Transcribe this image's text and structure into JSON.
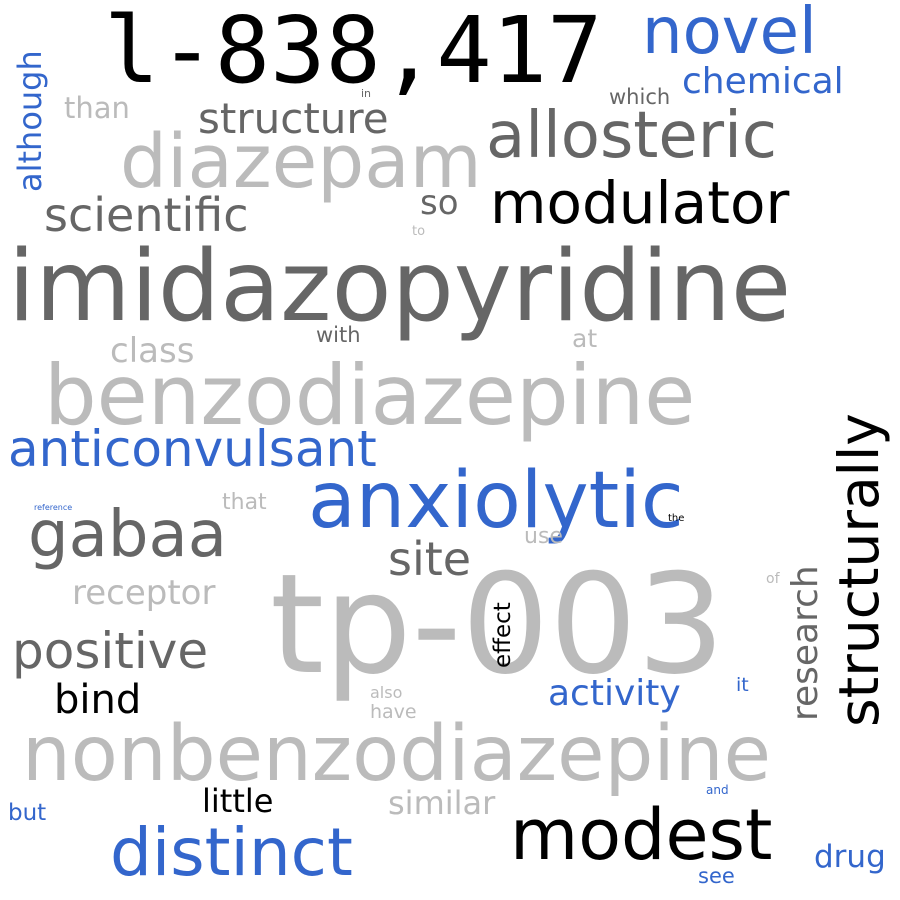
{
  "colors": {
    "black": "#000000",
    "dark_gray": "#666666",
    "light_gray": "#bbbbbb",
    "blue": "#3366cc",
    "background": "#ffffff"
  },
  "words": {
    "l838417": "l-838,417",
    "novel": "novel",
    "chemical": "chemical",
    "which": "which",
    "in": "in",
    "than": "than",
    "although": "although",
    "structure": "structure",
    "allosteric": "allosteric",
    "diazepam": "diazepam",
    "modulator": "modulator",
    "scientific": "scientific",
    "so": "so",
    "to": "to",
    "imidazopyridine": "imidazopyridine",
    "class": "class",
    "with": "with",
    "at": "at",
    "benzodiazepine": "benzodiazepine",
    "structurally": "structurally",
    "anticonvulsant": "anticonvulsant",
    "anxiolytic": "anxiolytic",
    "reference": "reference",
    "that": "that",
    "the": "the",
    "gabaa": "gabaa",
    "site": "site",
    "use": "use",
    "receptor": "receptor",
    "tp003": "tp-003",
    "of": "of",
    "research": "research",
    "effect": "effect",
    "positive": "positive",
    "bind": "bind",
    "activity": "activity",
    "it": "it",
    "also": "also",
    "have": "have",
    "nonbenzodiazepine": "nonbenzodiazepine",
    "little": "little",
    "similar": "similar",
    "but": "but",
    "and": "and",
    "distinct": "distinct",
    "modest": "modest",
    "drug": "drug",
    "see": "see"
  }
}
